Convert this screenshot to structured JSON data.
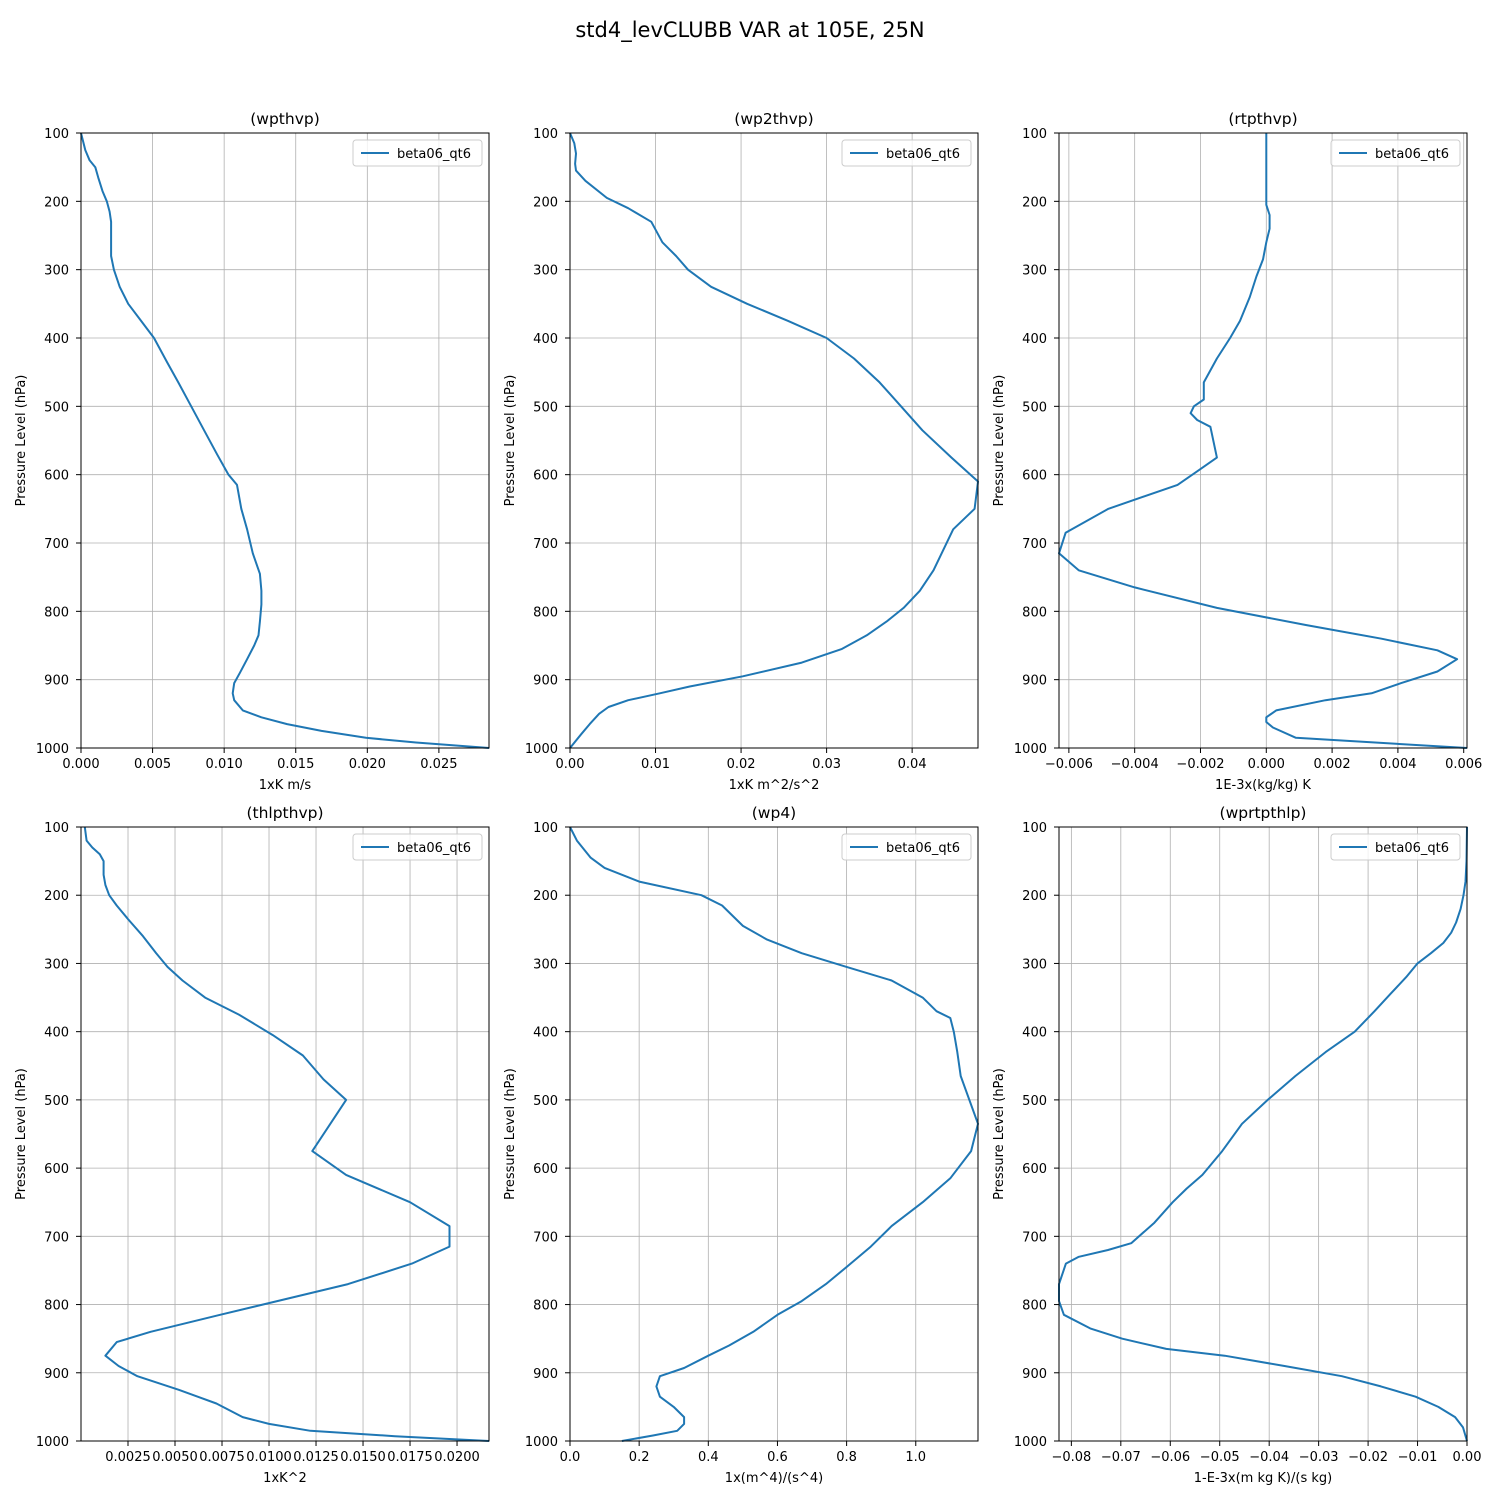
{
  "figure": {
    "title": "std4_levCLUBB VAR at 105E, 25N"
  },
  "colors": {
    "line": "#1f77b4",
    "grid": "#b0b0b0",
    "axis": "#000000"
  },
  "chart_data": [
    {
      "type": "line",
      "title": "(wpthvp)",
      "xlabel": "1xK m/s",
      "ylabel": "Pressure Level (hPa)",
      "xlim": [
        0,
        0.0285
      ],
      "ylim": [
        1000,
        100
      ],
      "y_inverted": true,
      "grid": true,
      "legend": "top-right",
      "xticks": [
        0,
        0.005,
        0.01,
        0.015,
        0.02,
        0.025
      ],
      "xtick_labels": [
        "0.000",
        "0.005",
        "0.010",
        "0.015",
        "0.020",
        "0.025"
      ],
      "yticks": [
        100,
        200,
        300,
        400,
        500,
        600,
        700,
        800,
        900,
        1000
      ],
      "ytick_labels": [
        "100",
        "200",
        "300",
        "400",
        "500",
        "600",
        "700",
        "800",
        "900",
        "1000"
      ],
      "series": [
        {
          "name": "beta06_qt6",
          "x": [
            0.0,
            0.0003,
            0.0006,
            0.001,
            0.0012,
            0.0015,
            0.0018,
            0.002,
            0.0021,
            0.0021,
            0.0021,
            0.0023,
            0.0027,
            0.0033,
            0.0042,
            0.0051,
            0.006,
            0.0068,
            0.0077,
            0.0086,
            0.0095,
            0.0103,
            0.0109,
            0.0112,
            0.0116,
            0.012,
            0.0125,
            0.0126,
            0.0126,
            0.0125,
            0.0124,
            0.0121,
            0.0116,
            0.0111,
            0.0107,
            0.0106,
            0.0107,
            0.0113,
            0.0126,
            0.0144,
            0.0168,
            0.0199,
            0.0234,
            0.0285
          ],
          "y": [
            100,
            125,
            140,
            150,
            165,
            185,
            200,
            215,
            230,
            250,
            280,
            300,
            325,
            350,
            375,
            400,
            435,
            465,
            500,
            535,
            570,
            600,
            615,
            650,
            680,
            715,
            745,
            770,
            790,
            815,
            835,
            850,
            870,
            890,
            905,
            920,
            930,
            945,
            955,
            965,
            975,
            985,
            992,
            1000
          ]
        }
      ]
    },
    {
      "type": "line",
      "title": "(wp2thvp)",
      "xlabel": "1xK m^2/s^2",
      "ylabel": "Pressure Level (hPa)",
      "xlim": [
        0,
        0.0477
      ],
      "ylim": [
        1000,
        100
      ],
      "y_inverted": true,
      "grid": true,
      "legend": "top-right",
      "xticks": [
        0,
        0.01,
        0.02,
        0.03,
        0.04
      ],
      "xtick_labels": [
        "0.00",
        "0.01",
        "0.02",
        "0.03",
        "0.04"
      ],
      "yticks": [
        100,
        200,
        300,
        400,
        500,
        600,
        700,
        800,
        900,
        1000
      ],
      "ytick_labels": [
        "100",
        "200",
        "300",
        "400",
        "500",
        "600",
        "700",
        "800",
        "900",
        "1000"
      ],
      "series": [
        {
          "name": "beta06_qt6",
          "x": [
            0.0,
            0.0005,
            0.0007,
            0.0006,
            0.0007,
            0.0018,
            0.0043,
            0.0068,
            0.0095,
            0.0108,
            0.0124,
            0.0138,
            0.0165,
            0.0207,
            0.0255,
            0.03,
            0.0332,
            0.0362,
            0.0387,
            0.0412,
            0.0446,
            0.0477,
            0.0473,
            0.0448,
            0.0425,
            0.0409,
            0.039,
            0.037,
            0.0347,
            0.0318,
            0.0271,
            0.0202,
            0.014,
            0.0105,
            0.0068,
            0.0045,
            0.0034,
            0.0023,
            0.0013,
            0.0
          ],
          "y": [
            100,
            115,
            130,
            145,
            155,
            170,
            195,
            210,
            230,
            260,
            280,
            300,
            325,
            350,
            375,
            400,
            430,
            465,
            500,
            535,
            575,
            610,
            650,
            680,
            740,
            770,
            795,
            815,
            835,
            855,
            875,
            895,
            910,
            920,
            930,
            940,
            950,
            965,
            980,
            1000
          ]
        }
      ]
    },
    {
      "type": "line",
      "title": "(rtpthvp)",
      "xlabel": "1E-3x(kg/kg) K",
      "ylabel": "Pressure Level (hPa)",
      "xlim": [
        -0.0063,
        0.0061
      ],
      "ylim": [
        1000,
        100
      ],
      "y_inverted": true,
      "grid": true,
      "legend": "top-right",
      "xticks": [
        -0.006,
        -0.004,
        -0.002,
        0,
        0.002,
        0.004,
        0.006
      ],
      "xtick_labels": [
        "−0.006",
        "−0.004",
        "−0.002",
        "0.000",
        "0.002",
        "0.004",
        "0.006"
      ],
      "yticks": [
        100,
        200,
        300,
        400,
        500,
        600,
        700,
        800,
        900,
        1000
      ],
      "ytick_labels": [
        "100",
        "200",
        "300",
        "400",
        "500",
        "600",
        "700",
        "800",
        "900",
        "1000"
      ],
      "series": [
        {
          "name": "beta06_qt6",
          "x": [
            0.0,
            0.0,
            0.0,
            0.0,
            0.0,
            0.0001,
            0.0001,
            0.0,
            -0.0001,
            -0.0003,
            -0.0005,
            -0.0008,
            -0.0011,
            -0.0015,
            -0.0019,
            -0.0019,
            -0.0022,
            -0.0023,
            -0.0021,
            -0.0017,
            -0.0015,
            -0.0021,
            -0.0027,
            -0.0048,
            -0.0061,
            -0.0063,
            -0.0057,
            -0.004,
            -0.0015,
            0.0012,
            0.0035,
            0.0052,
            0.0058,
            0.0052,
            0.0041,
            0.0032,
            0.0018,
            0.0003,
            0.0,
            0.0,
            0.0002,
            0.0009,
            0.0061
          ],
          "y": [
            100,
            140,
            170,
            190,
            205,
            220,
            240,
            260,
            285,
            310,
            340,
            375,
            400,
            430,
            465,
            490,
            500,
            510,
            520,
            530,
            575,
            595,
            615,
            650,
            685,
            715,
            740,
            765,
            795,
            820,
            840,
            857,
            870,
            888,
            905,
            920,
            930,
            945,
            955,
            962,
            970,
            985,
            1000
          ]
        }
      ]
    },
    {
      "type": "line",
      "title": "(thlpthvp)",
      "xlabel": "1xK^2",
      "ylabel": "Pressure Level (hPa)",
      "xlim": [
        0.0,
        0.0217
      ],
      "ylim": [
        1000,
        100
      ],
      "y_inverted": true,
      "grid": true,
      "legend": "top-right",
      "xticks": [
        0.0025,
        0.005,
        0.0075,
        0.01,
        0.0125,
        0.015,
        0.0175,
        0.02
      ],
      "xtick_labels": [
        "0.0025",
        "0.0050",
        "0.0075",
        "0.0100",
        "0.0125",
        "0.0150",
        "0.0175",
        "0.0200"
      ],
      "yticks": [
        100,
        200,
        300,
        400,
        500,
        600,
        700,
        800,
        900,
        1000
      ],
      "ytick_labels": [
        "100",
        "200",
        "300",
        "400",
        "500",
        "600",
        "700",
        "800",
        "900",
        "1000"
      ],
      "series": [
        {
          "name": "beta06_qt6",
          "x": [
            0.0002,
            0.0003,
            0.0006,
            0.001,
            0.0012,
            0.0012,
            0.0013,
            0.0015,
            0.0019,
            0.0025,
            0.0033,
            0.004,
            0.0046,
            0.0054,
            0.0066,
            0.0084,
            0.0102,
            0.0118,
            0.0129,
            0.0141,
            0.0123,
            0.0141,
            0.0175,
            0.0196,
            0.0196,
            0.0176,
            0.0142,
            0.0074,
            0.0037,
            0.0019,
            0.0013,
            0.002,
            0.003,
            0.0052,
            0.0072,
            0.0086,
            0.01,
            0.0122,
            0.0167,
            0.0217
          ],
          "y": [
            100,
            120,
            130,
            140,
            150,
            170,
            185,
            200,
            215,
            235,
            260,
            285,
            305,
            325,
            350,
            375,
            405,
            435,
            470,
            500,
            575,
            610,
            650,
            685,
            715,
            740,
            770,
            815,
            840,
            855,
            875,
            890,
            905,
            925,
            945,
            965,
            975,
            985,
            993,
            1000
          ]
        }
      ]
    },
    {
      "type": "line",
      "title": "(wp4)",
      "xlabel": "1x(m^4)/(s^4)",
      "ylabel": "Pressure Level (hPa)",
      "xlim": [
        0,
        1.18
      ],
      "ylim": [
        1000,
        100
      ],
      "y_inverted": true,
      "grid": true,
      "legend": "top-right",
      "xticks": [
        0,
        0.2,
        0.4,
        0.6,
        0.8,
        1.0
      ],
      "xtick_labels": [
        "0.0",
        "0.2",
        "0.4",
        "0.6",
        "0.8",
        "1.0"
      ],
      "yticks": [
        100,
        200,
        300,
        400,
        500,
        600,
        700,
        800,
        900,
        1000
      ],
      "ytick_labels": [
        "100",
        "200",
        "300",
        "400",
        "500",
        "600",
        "700",
        "800",
        "900",
        "1000"
      ],
      "series": [
        {
          "name": "beta06_qt6",
          "x": [
            0.0,
            0.02,
            0.06,
            0.1,
            0.2,
            0.38,
            0.44,
            0.5,
            0.57,
            0.67,
            0.8,
            0.93,
            1.02,
            1.06,
            1.1,
            1.11,
            1.12,
            1.13,
            1.18,
            1.16,
            1.1,
            1.02,
            0.93,
            0.87,
            0.8,
            0.74,
            0.67,
            0.6,
            0.53,
            0.46,
            0.4,
            0.33,
            0.26,
            0.25,
            0.26,
            0.3,
            0.33,
            0.33,
            0.31,
            0.24,
            0.15
          ],
          "y": [
            100,
            120,
            145,
            160,
            180,
            200,
            215,
            245,
            265,
            285,
            305,
            325,
            350,
            370,
            380,
            400,
            430,
            465,
            535,
            575,
            615,
            650,
            685,
            715,
            745,
            770,
            795,
            815,
            840,
            860,
            875,
            893,
            905,
            920,
            935,
            950,
            965,
            975,
            985,
            992,
            1000
          ]
        }
      ]
    },
    {
      "type": "line",
      "title": "(wprtpthlp)",
      "xlabel": "1-E-3x(m kg K)/(s kg)",
      "ylabel": "Pressure Level (hPa)",
      "xlim": [
        -0.0825,
        0.0
      ],
      "ylim": [
        1000,
        100
      ],
      "y_inverted": true,
      "grid": true,
      "legend": "top-right",
      "xticks": [
        -0.08,
        -0.07,
        -0.06,
        -0.05,
        -0.04,
        -0.03,
        -0.02,
        -0.01,
        0
      ],
      "xtick_labels": [
        "−0.08",
        "−0.07",
        "−0.06",
        "−0.05",
        "−0.04",
        "−0.03",
        "−0.02",
        "−0.01",
        "0.00"
      ],
      "yticks": [
        100,
        200,
        300,
        400,
        500,
        600,
        700,
        800,
        900,
        1000
      ],
      "ytick_labels": [
        "100",
        "200",
        "300",
        "400",
        "500",
        "600",
        "700",
        "800",
        "900",
        "1000"
      ],
      "series": [
        {
          "name": "beta06_qt6",
          "x": [
            0.0,
            -0.0001,
            -0.0003,
            -0.0007,
            -0.0013,
            -0.0022,
            -0.0032,
            -0.0048,
            -0.0073,
            -0.01,
            -0.0123,
            -0.0155,
            -0.0187,
            -0.0227,
            -0.0286,
            -0.0347,
            -0.0403,
            -0.0455,
            -0.0495,
            -0.0535,
            -0.0567,
            -0.0595,
            -0.0632,
            -0.0679,
            -0.0726,
            -0.0785,
            -0.0811,
            -0.0825,
            -0.0825,
            -0.0815,
            -0.0762,
            -0.0697,
            -0.0608,
            -0.049,
            -0.0369,
            -0.0253,
            -0.0174,
            -0.0104,
            -0.0058,
            -0.0024,
            -0.0008,
            0.0
          ],
          "y": [
            100,
            150,
            180,
            200,
            220,
            240,
            255,
            270,
            285,
            300,
            320,
            345,
            370,
            400,
            430,
            465,
            500,
            535,
            575,
            610,
            630,
            650,
            680,
            710,
            720,
            730,
            740,
            770,
            795,
            815,
            835,
            850,
            865,
            875,
            890,
            905,
            920,
            935,
            950,
            965,
            980,
            1000
          ]
        }
      ]
    }
  ]
}
